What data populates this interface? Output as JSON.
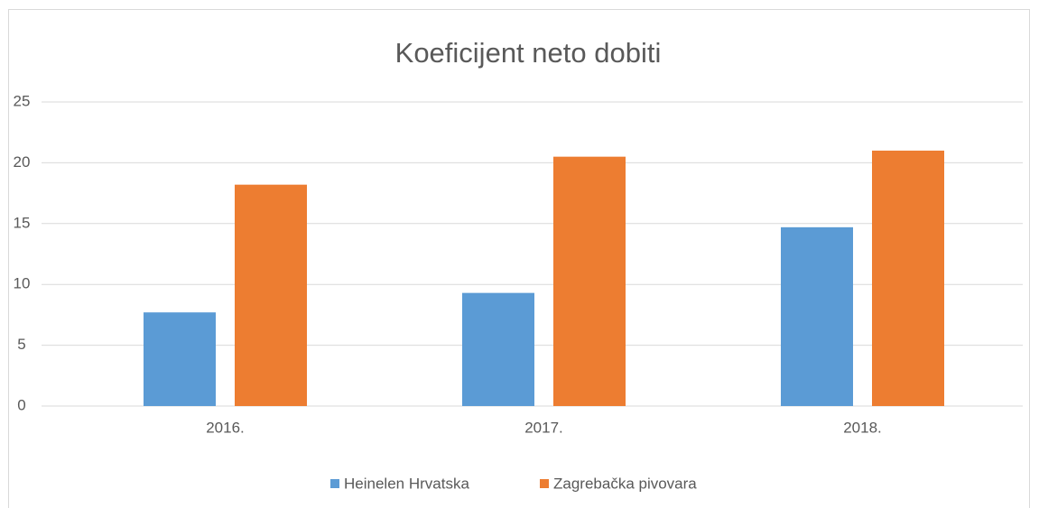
{
  "chart_data": {
    "type": "bar",
    "title": "Koeficijent neto dobiti",
    "categories": [
      "2016.",
      "2017.",
      "2018."
    ],
    "series": [
      {
        "name": "Heinelen Hrvatska",
        "color": "#5b9bd5",
        "values": [
          7.7,
          9.3,
          14.7
        ]
      },
      {
        "name": "Zagrebačka pivovara",
        "color": "#ed7d31",
        "values": [
          18.2,
          20.5,
          21.0
        ]
      }
    ],
    "ylim": [
      0,
      25
    ],
    "yticks": [
      0,
      5,
      10,
      15,
      20,
      25
    ],
    "grid": true,
    "legend": "bottom"
  }
}
